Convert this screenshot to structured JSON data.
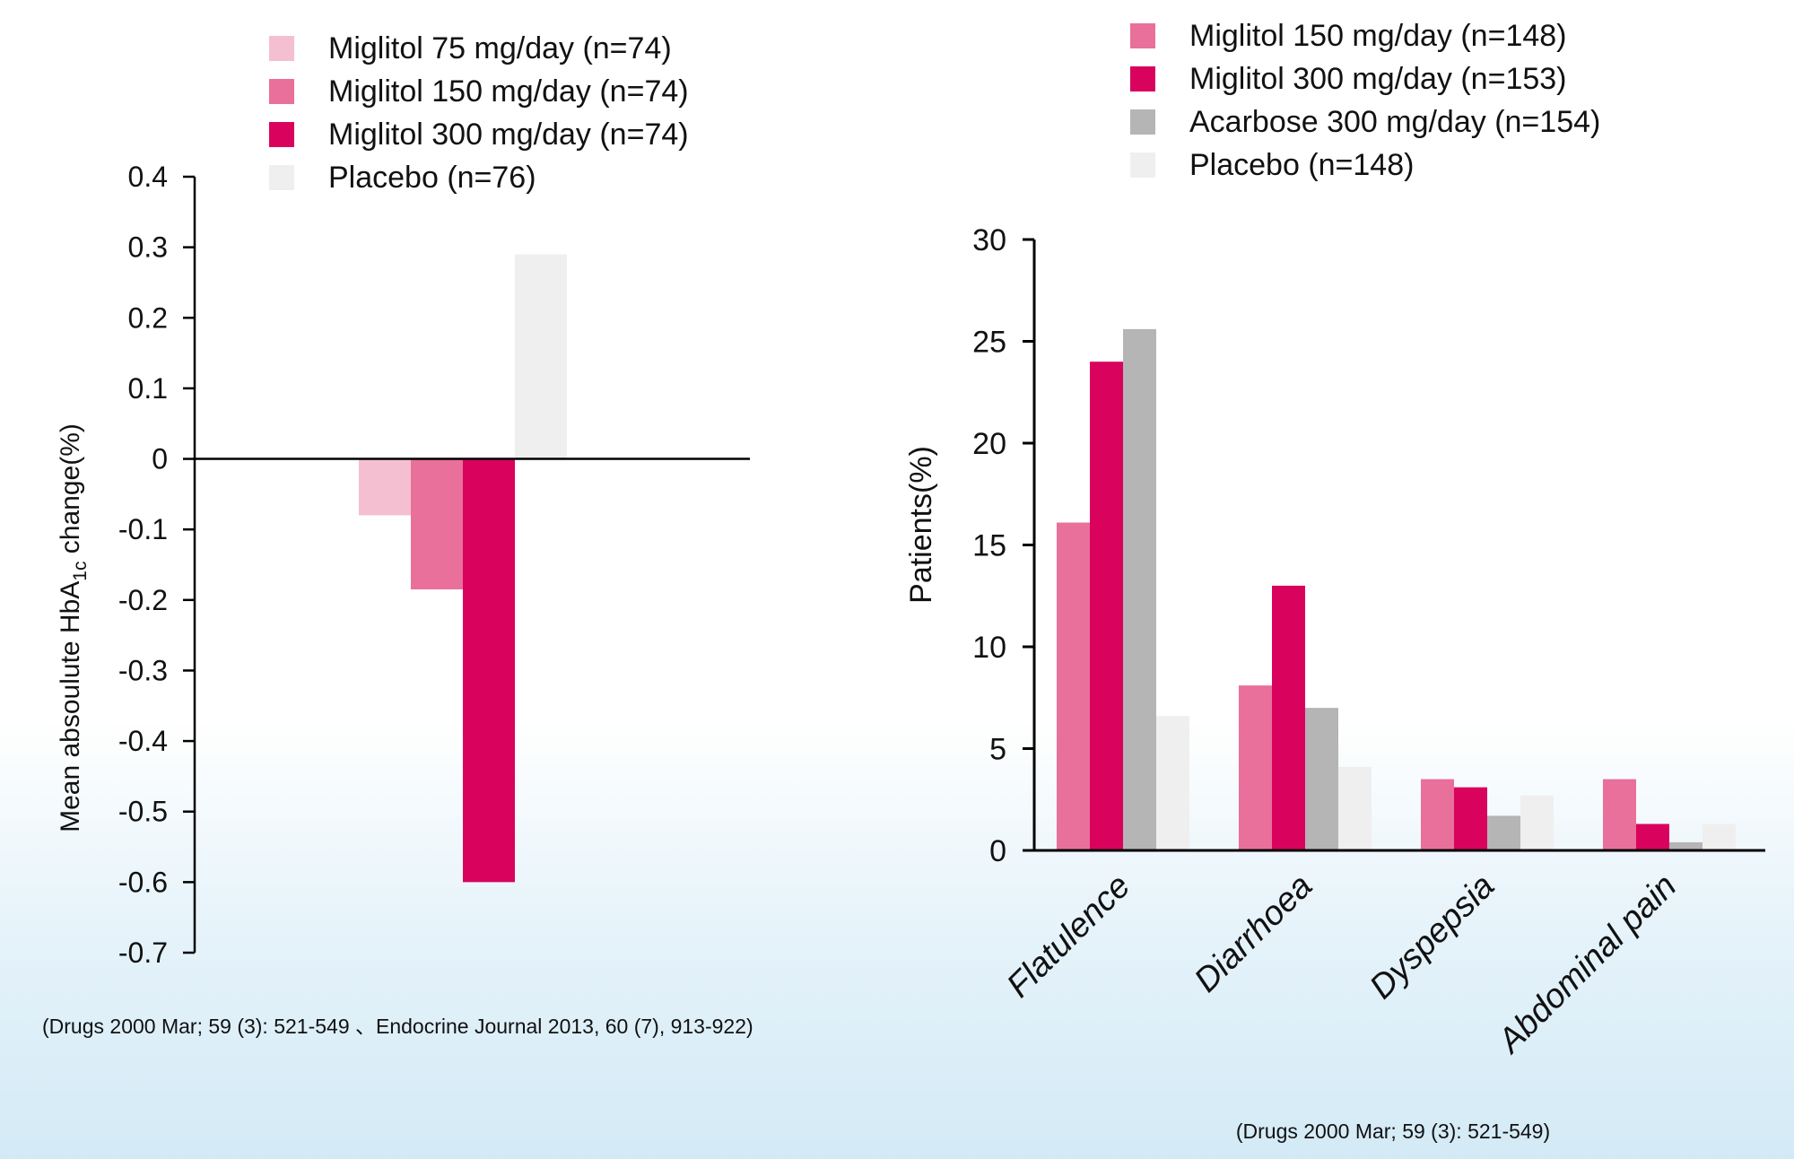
{
  "chart_data": [
    {
      "type": "bar",
      "title": "",
      "ylabel_main": "Mean absoulute HbA",
      "ylabel_sub": "1c",
      "ylabel_tail": " change(%)",
      "ylim": [
        -0.7,
        0.4
      ],
      "yticks": [
        "0.4",
        "0.3",
        "0.2",
        "0.1",
        "0",
        "-0.1",
        "-0.2",
        "-0.3",
        "-0.4",
        "-0.5",
        "-0.6",
        "-0.7"
      ],
      "legend_position": "top",
      "series": [
        {
          "name": "Miglitol 75 mg/day (n=74)",
          "value": -0.08,
          "color": "#f5bfd2"
        },
        {
          "name": "Miglitol 150 mg/day (n=74)",
          "value": -0.185,
          "color": "#e8709a"
        },
        {
          "name": "Miglitol 300 mg/day (n=74)",
          "value": -0.6,
          "color": "#d9035e"
        },
        {
          "name": "Placebo (n=76)",
          "value": 0.29,
          "color": "#efefef"
        }
      ],
      "source": "(Drugs 2000 Mar; 59 (3): 521-549 、Endocrine Journal 2013, 60 (7), 913-922)"
    },
    {
      "type": "bar",
      "title": "",
      "ylabel": "Patients(%)",
      "ylim": [
        0,
        30
      ],
      "yticks": [
        "30",
        "25",
        "20",
        "15",
        "10",
        "5",
        "0"
      ],
      "legend_position": "top",
      "categories": [
        "Flatulence",
        "Diarrhoea",
        "Dyspepsia",
        "Abdominal pain"
      ],
      "series": [
        {
          "name": "Miglitol 150 mg/day (n=148)",
          "values": [
            16.1,
            8.1,
            3.5,
            3.5
          ],
          "color": "#e8709a"
        },
        {
          "name": "Miglitol 300 mg/day (n=153)",
          "values": [
            24.0,
            13.0,
            3.1,
            1.3
          ],
          "color": "#d9035e"
        },
        {
          "name": "Acarbose 300 mg/day (n=154)",
          "values": [
            25.6,
            7.0,
            1.7,
            0.4
          ],
          "color": "#b5b5b5"
        },
        {
          "name": "Placebo (n=148)",
          "values": [
            6.6,
            4.1,
            2.7,
            1.3
          ],
          "color": "#efefef"
        }
      ],
      "source": "(Drugs 2000 Mar; 59 (3): 521-549)"
    }
  ]
}
